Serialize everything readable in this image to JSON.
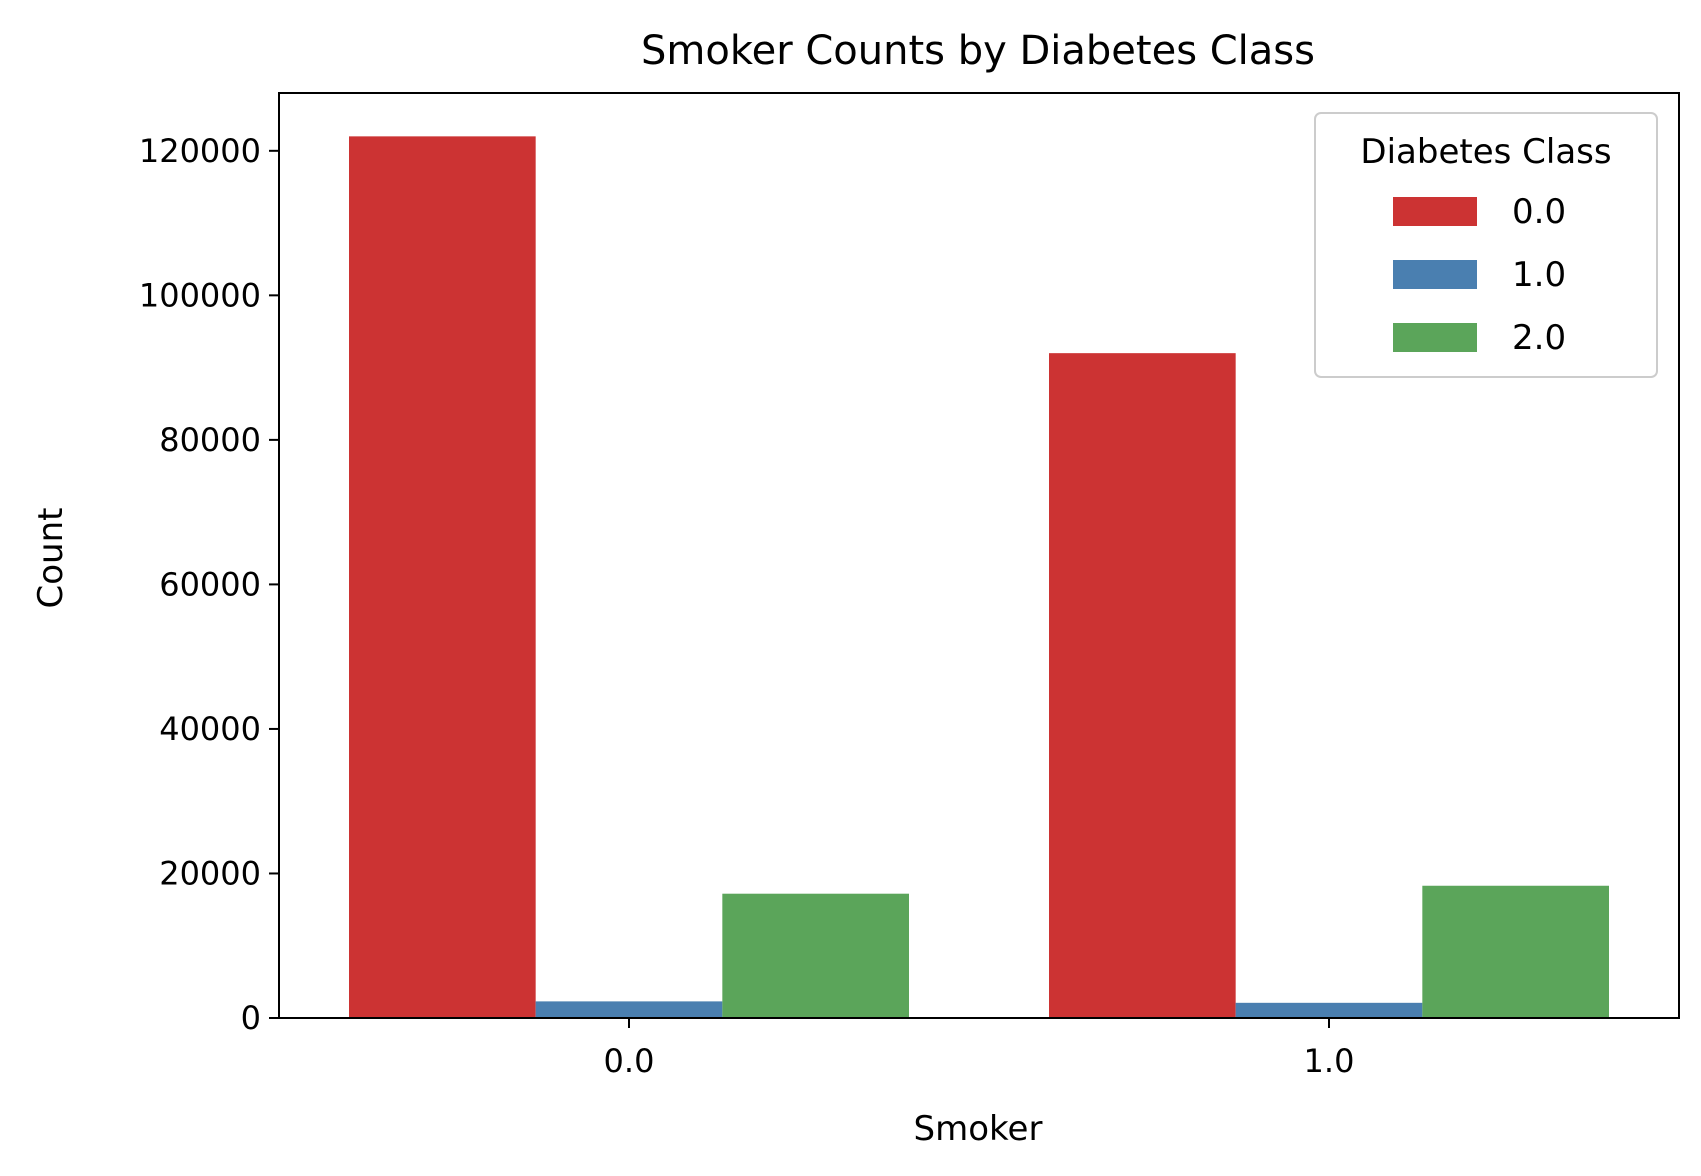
{
  "chart_data": {
    "type": "bar",
    "title": "Smoker Counts by Diabetes Class",
    "xlabel": "Smoker",
    "ylabel": "Count",
    "categories": [
      "0.0",
      "1.0"
    ],
    "series": [
      {
        "name": "0.0",
        "color": "#CC3333",
        "values": [
          122000,
          92000
        ]
      },
      {
        "name": "1.0",
        "color": "#4A7FB0",
        "values": [
          2300,
          2100
        ]
      },
      {
        "name": "2.0",
        "color": "#5BA55A",
        "values": [
          17200,
          18300
        ]
      }
    ],
    "ylim": [
      0,
      128000
    ],
    "yticks": [
      0,
      20000,
      40000,
      60000,
      80000,
      100000,
      120000
    ],
    "ytick_labels": [
      "0",
      "20000",
      "40000",
      "60000",
      "80000",
      "100000",
      "120000"
    ],
    "legend": {
      "title": "Diabetes Class",
      "placement": "top-right"
    },
    "grid": false
  }
}
